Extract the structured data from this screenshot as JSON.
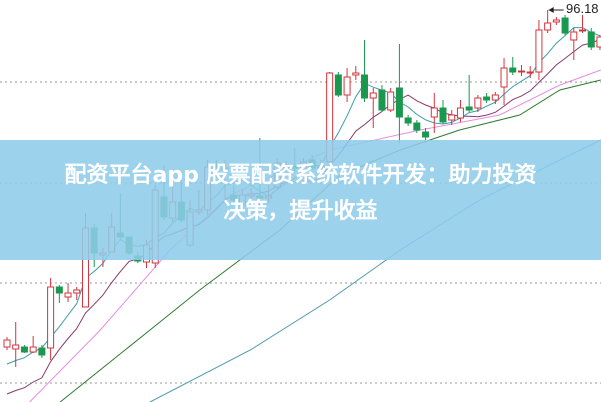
{
  "banner": {
    "line1": "配资平台app 股票配资系统软件开发：助力投资",
    "line2": "决策，提升收益"
  },
  "chart_data": {
    "type": "candlestick",
    "high_marker_label": "96.18",
    "grid": true,
    "colors": {
      "up": "#d6343c",
      "down": "#1a9850",
      "ma5": "#3a9ea6",
      "ma10": "#8a3a6c",
      "ma_pink": "#e58ee0",
      "ma_green": "#2f7a30",
      "ma_teal": "#4a9aaa",
      "banner": "#8eccE8"
    },
    "ohlc": [
      [
        62.48,
        63.18,
        63.48,
        62.18
      ],
      [
        62.28,
        62.68,
        64.98,
        60.48
      ],
      [
        62.48,
        61.98,
        62.68,
        61.88
      ],
      [
        61.98,
        62.48,
        63.58,
        61.88
      ],
      [
        62.38,
        61.68,
        62.68,
        61.38
      ],
      [
        62.38,
        68.48,
        69.38,
        61.18
      ],
      [
        68.48,
        67.88,
        68.68,
        66.88
      ],
      [
        67.48,
        67.88,
        68.88,
        66.98
      ],
      [
        67.88,
        68.18,
        68.48,
        67.18
      ],
      [
        66.48,
        74.38,
        75.88,
        66.48
      ],
      [
        74.38,
        71.88,
        74.78,
        70.48
      ],
      [
        71.68,
        71.88,
        72.38,
        70.48
      ],
      [
        71.98,
        74.48,
        75.88,
        71.98
      ],
      [
        73.88,
        73.48,
        77.88,
        73.18
      ],
      [
        73.48,
        71.88,
        73.48,
        71.68
      ],
      [
        71.58,
        71.08,
        71.98,
        70.88
      ],
      [
        70.98,
        72.68,
        73.18,
        70.38
      ],
      [
        70.88,
        78.18,
        78.68,
        70.38
      ],
      [
        77.48,
        75.48,
        80.68,
        75.18
      ],
      [
        75.38,
        76.98,
        79.18,
        74.98
      ],
      [
        76.98,
        75.18,
        79.18,
        74.98
      ],
      [
        72.68,
        75.98,
        77.18,
        72.48
      ],
      [
        75.98,
        76.18,
        78.18,
        75.68
      ],
      [
        76.18,
        80.48,
        81.18,
        75.68
      ],
      [
        80.68,
        80.18,
        81.18,
        79.98
      ],
      [
        80.18,
        80.38,
        81.18,
        77.18
      ],
      [
        77.68,
        77.18,
        78.68,
        76.68
      ],
      [
        76.68,
        77.68,
        78.18,
        76.18
      ],
      [
        77.58,
        77.78,
        78.38,
        77.18
      ],
      [
        77.58,
        77.38,
        83.38,
        76.68
      ],
      [
        77.38,
        77.58,
        78.68,
        76.88
      ],
      [
        78.48,
        80.88,
        81.38,
        78.18
      ],
      [
        80.38,
        80.58,
        81.08,
        79.98
      ],
      [
        80.58,
        80.38,
        82.38,
        79.98
      ],
      [
        80.18,
        80.98,
        81.38,
        79.98
      ],
      [
        81.18,
        80.38,
        81.68,
        80.18
      ],
      [
        80.38,
        80.58,
        81.18,
        79.98
      ],
      [
        80.98,
        89.88,
        89.98,
        80.68
      ],
      [
        89.68,
        87.68,
        89.98,
        87.48
      ],
      [
        87.68,
        89.48,
        90.38,
        86.98
      ],
      [
        89.68,
        89.88,
        90.58,
        89.18
      ],
      [
        89.68,
        87.38,
        93.18,
        86.98
      ],
      [
        87.38,
        87.88,
        88.38,
        84.38
      ],
      [
        88.18,
        86.18,
        88.68,
        85.98
      ],
      [
        86.18,
        87.98,
        88.38,
        85.98
      ],
      [
        88.38,
        85.48,
        92.78,
        82.88
      ],
      [
        85.38,
        84.88,
        85.68,
        84.58
      ],
      [
        84.88,
        84.18,
        85.18,
        83.88
      ],
      [
        83.98,
        83.48,
        84.38,
        83.18
      ],
      [
        85.48,
        86.38,
        87.88,
        83.88
      ],
      [
        86.38,
        84.98,
        87.18,
        84.78
      ],
      [
        85.18,
        85.68,
        86.18,
        84.68
      ],
      [
        85.38,
        86.38,
        87.18,
        84.98
      ],
      [
        86.48,
        86.18,
        89.68,
        85.98
      ],
      [
        86.38,
        87.38,
        87.68,
        85.98
      ],
      [
        87.48,
        87.18,
        87.88,
        86.88
      ],
      [
        87.18,
        87.68,
        87.98,
        86.78
      ],
      [
        88.48,
        90.38,
        91.38,
        86.68
      ],
      [
        90.38,
        89.98,
        91.48,
        89.68
      ],
      [
        89.98,
        90.08,
        90.68,
        89.58
      ],
      [
        89.88,
        89.98,
        90.58,
        89.38
      ],
      [
        89.98,
        94.18,
        95.18,
        89.18
      ],
      [
        94.18,
        94.88,
        96.18,
        93.88
      ],
      [
        94.98,
        95.18,
        95.48,
        94.68
      ],
      [
        95.38,
        93.88,
        95.68,
        93.68
      ],
      [
        93.18,
        93.98,
        94.38,
        91.18
      ],
      [
        94.08,
        94.18,
        95.68,
        93.88
      ],
      [
        93.98,
        92.48,
        94.38,
        92.18
      ],
      [
        92.48,
        93.48,
        93.68,
        92.18
      ]
    ],
    "ohlc_fields": [
      "open",
      "close",
      "high",
      "low"
    ],
    "moving_averages": [
      {
        "key": "ma_pink",
        "points": [
          [
            2.6,
            56.98
          ],
          [
            10.7,
            64.18
          ],
          [
            18.7,
            72.18
          ],
          [
            25.6,
            77.68
          ],
          [
            37,
            82.18
          ],
          [
            47.4,
            84.18
          ],
          [
            56.5,
            85.68
          ],
          [
            63.4,
            88.68
          ],
          [
            68.1,
            90.18
          ]
        ]
      },
      {
        "key": "ma_green",
        "points": [
          [
            6.1,
            56.98
          ],
          [
            16.4,
            64.18
          ],
          [
            22.1,
            68.18
          ],
          [
            31.3,
            74.18
          ],
          [
            38.2,
            79.68
          ],
          [
            45.1,
            82.18
          ],
          [
            51.9,
            84.18
          ],
          [
            58.8,
            85.68
          ],
          [
            63.4,
            88.18
          ],
          [
            68.1,
            89.18
          ]
        ]
      },
      {
        "key": "ma_teal",
        "points": [
          [
            16.4,
            56.98
          ],
          [
            27.9,
            62.18
          ],
          [
            37,
            67.18
          ],
          [
            45.1,
            72.18
          ],
          [
            54.2,
            77.18
          ],
          [
            63.4,
            81.18
          ],
          [
            68.1,
            83.18
          ]
        ]
      }
    ]
  }
}
